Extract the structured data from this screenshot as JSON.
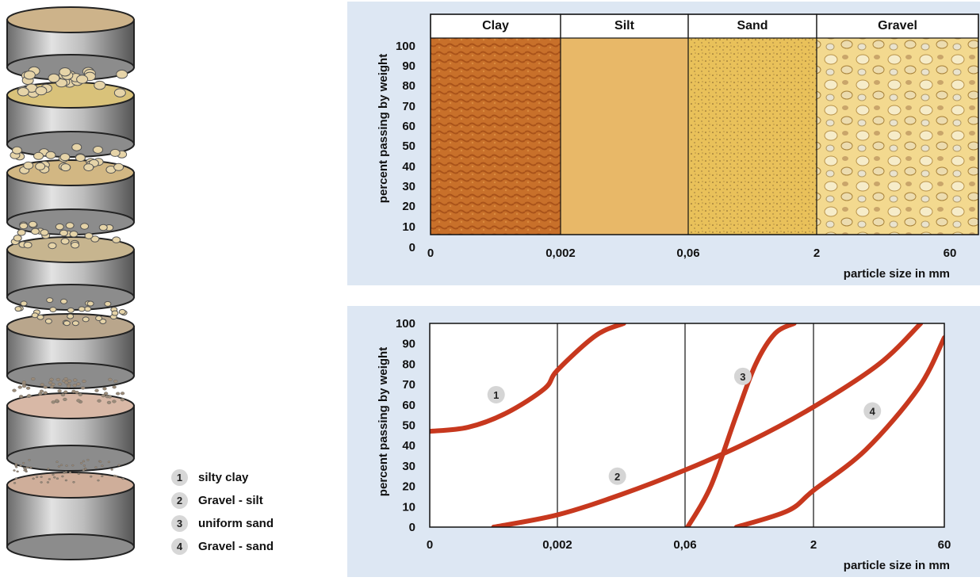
{
  "legend": [
    {
      "num": "1",
      "label": "silty clay"
    },
    {
      "num": "2",
      "label": "Gravel - silt"
    },
    {
      "num": "3",
      "label": "uniform sand"
    },
    {
      "num": "4",
      "label": "Gravel - sand"
    }
  ],
  "top_chart": {
    "categories": [
      "Clay",
      "Silt",
      "Sand",
      "Gravel"
    ],
    "y_ticks": [
      "100",
      "90",
      "80",
      "70",
      "60",
      "50",
      "40",
      "30",
      "20",
      "10",
      "0"
    ],
    "x_ticks": [
      "0",
      "0,002",
      "0,06",
      "2",
      "60"
    ],
    "ylabel": "percent passing by weight",
    "xlabel": "particle size in mm"
  },
  "chart_data": {
    "type": "line",
    "ylabel": "percent passing by weight",
    "xlabel": "particle size in mm",
    "x_ticks": [
      "0",
      "0,002",
      "0,06",
      "2",
      "60"
    ],
    "ylim": [
      0,
      100
    ],
    "grid": "vertical lines at tick boundaries",
    "series": [
      {
        "name": "1",
        "x": [
          0,
          0.3,
          0.6,
          0.9,
          1.0,
          1.3,
          1.52
        ],
        "y": [
          47,
          49,
          56,
          68,
          77,
          94,
          100
        ]
      },
      {
        "name": "2",
        "x": [
          0.5,
          1.0,
          1.5,
          2.0,
          2.5,
          3.0,
          3.5,
          3.82
        ],
        "y": [
          0,
          6,
          16,
          28,
          42,
          59,
          80,
          100
        ]
      },
      {
        "name": "3",
        "x": [
          2.02,
          2.2,
          2.4,
          2.55,
          2.7,
          2.85
        ],
        "y": [
          0,
          20,
          55,
          80,
          95,
          100
        ]
      },
      {
        "name": "4",
        "x": [
          2.4,
          2.8,
          3.0,
          3.4,
          3.8,
          4.0
        ],
        "y": [
          0,
          8,
          18,
          38,
          68,
          93
        ]
      }
    ],
    "curve_labels": [
      {
        "label": "1",
        "x": 0.52,
        "y": 65
      },
      {
        "label": "2",
        "x": 1.47,
        "y": 25
      },
      {
        "label": "3",
        "x": 2.45,
        "y": 74
      },
      {
        "label": "4",
        "x": 3.45,
        "y": 57
      }
    ]
  }
}
